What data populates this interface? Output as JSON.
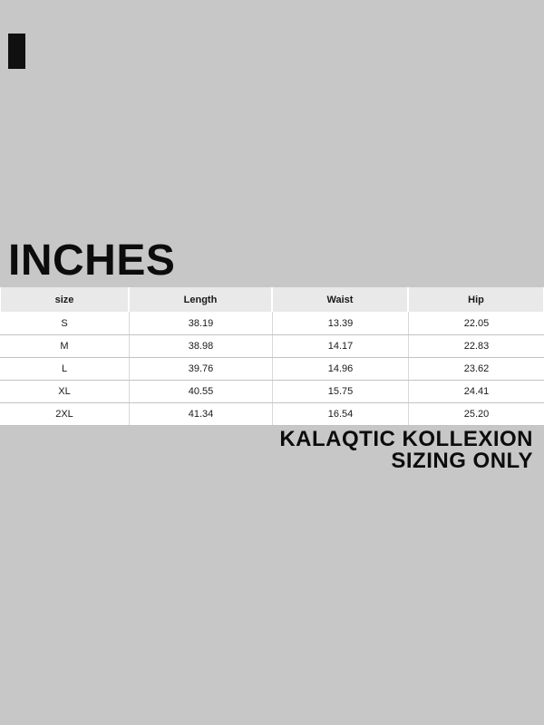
{
  "title": "INCHES",
  "table": {
    "columns": [
      "size",
      "Length",
      "Waist",
      "Hip"
    ],
    "rows": [
      [
        "S",
        "38.19",
        "13.39",
        "22.05"
      ],
      [
        "M",
        "38.98",
        "14.17",
        "22.83"
      ],
      [
        "L",
        "39.76",
        "14.96",
        "23.62"
      ],
      [
        "XL",
        "40.55",
        "15.75",
        "24.41"
      ],
      [
        "2XL",
        "41.34",
        "16.54",
        "25.20"
      ]
    ]
  },
  "footer": {
    "line1": "KALAQTIC KOLLEXION",
    "line2": "SIZING ONLY"
  },
  "colors": {
    "bg": "#c7c7c7",
    "header-bg": "#e9e9e9",
    "row-bg": "#ffffff",
    "row-border": "#c3c3c3",
    "col-divider": "#d8d8d8",
    "ink": "#0c0c0c"
  }
}
